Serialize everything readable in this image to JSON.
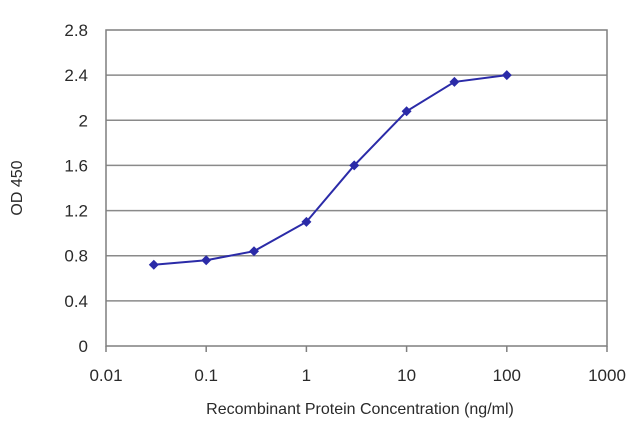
{
  "chart_data": {
    "type": "line",
    "title": "",
    "xlabel": "Recombinant Protein Concentration (ng/ml)",
    "ylabel": "OD 450",
    "x_scale": "log",
    "xlim": [
      0.01,
      1000
    ],
    "ylim": [
      0,
      2.8
    ],
    "x_ticks": [
      "0.01",
      "0.1",
      "1",
      "10",
      "100",
      "1000"
    ],
    "y_ticks": [
      "0",
      "0.4",
      "0.8",
      "1.2",
      "1.6",
      "2",
      "2.4",
      "2.8"
    ],
    "grid": "horizontal",
    "series": [
      {
        "color": "#2b2ba8",
        "marker": "diamond",
        "x": [
          0.03,
          0.1,
          0.3,
          1,
          3,
          10,
          30,
          100
        ],
        "y": [
          0.72,
          0.76,
          0.84,
          1.1,
          1.6,
          2.08,
          2.34,
          2.4
        ]
      }
    ]
  }
}
